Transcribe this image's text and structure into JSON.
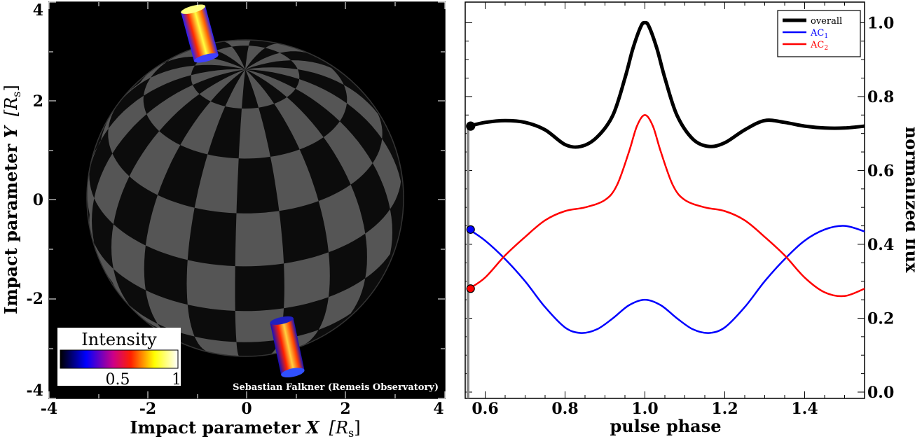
{
  "left_panel": {
    "xlabel": "Impact parameter X  [R_s]",
    "xlabel_main": "Impact parameter ",
    "xlabel_var": "X",
    "xlabel_unit": "[R",
    "xlabel_sub": "s",
    "xlabel_close": "]",
    "ylabel_main": "Impact parameter ",
    "ylabel_var": "Y",
    "ylabel_unit": "[R",
    "ylabel_sub": "s",
    "ylabel_close": "]",
    "x_ticks": [
      "-4",
      "-2",
      "0",
      "2",
      "4"
    ],
    "y_ticks": [
      "4",
      "2",
      "0",
      "-2",
      "-4"
    ],
    "xlim": [
      -4,
      4
    ],
    "ylim": [
      -4,
      4
    ],
    "colorbar": {
      "title": "Intensity",
      "tick_labels": [
        "0.5",
        "1"
      ],
      "colors": [
        "#000000",
        "#0000ff",
        "#ff0000",
        "#ffff00",
        "#ffffff"
      ]
    },
    "credit": "Sebastian Falkner (Remeis Observatory)",
    "background_color": "#000000",
    "sphere_light": "#555555",
    "sphere_dark": "#0c0c0c"
  },
  "chart_data": {
    "type": "line",
    "xlabel": "pulse phase",
    "ylabel": "normalized flux",
    "xlim": [
      0.55,
      1.55
    ],
    "ylim": [
      0,
      1.05
    ],
    "x_ticks": [
      "0.6",
      "0.8",
      "1.0",
      "1.2",
      "1.4"
    ],
    "y_ticks": [
      "0.0",
      "0.2",
      "0.4",
      "0.6",
      "0.8",
      "1.0"
    ],
    "legend_position": "top-right",
    "series": [
      {
        "name": "overall",
        "color": "#000000",
        "x": [
          0.56,
          0.6,
          0.65,
          0.7,
          0.75,
          0.8,
          0.84,
          0.88,
          0.92,
          0.95,
          0.97,
          0.99,
          1.0,
          1.01,
          1.03,
          1.05,
          1.08,
          1.12,
          1.16,
          1.2,
          1.25,
          1.3,
          1.35,
          1.4,
          1.45,
          1.5,
          1.55
        ],
        "values": [
          0.72,
          0.73,
          0.735,
          0.73,
          0.71,
          0.67,
          0.665,
          0.69,
          0.75,
          0.85,
          0.93,
          0.99,
          1.0,
          0.99,
          0.93,
          0.85,
          0.75,
          0.685,
          0.665,
          0.675,
          0.71,
          0.735,
          0.73,
          0.72,
          0.715,
          0.715,
          0.72
        ]
      },
      {
        "name": "AC1",
        "color": "#0000ff",
        "x": [
          0.56,
          0.6,
          0.65,
          0.7,
          0.75,
          0.8,
          0.84,
          0.88,
          0.92,
          0.96,
          1.0,
          1.04,
          1.08,
          1.12,
          1.16,
          1.2,
          1.25,
          1.3,
          1.35,
          1.4,
          1.45,
          1.5,
          1.55
        ],
        "values": [
          0.44,
          0.41,
          0.36,
          0.3,
          0.23,
          0.175,
          0.16,
          0.17,
          0.2,
          0.235,
          0.25,
          0.235,
          0.2,
          0.17,
          0.16,
          0.175,
          0.23,
          0.3,
          0.36,
          0.41,
          0.44,
          0.45,
          0.435
        ]
      },
      {
        "name": "AC2",
        "color": "#ff0000",
        "x": [
          0.56,
          0.6,
          0.65,
          0.7,
          0.75,
          0.8,
          0.85,
          0.9,
          0.93,
          0.96,
          0.98,
          1.0,
          1.02,
          1.04,
          1.07,
          1.1,
          1.15,
          1.2,
          1.25,
          1.3,
          1.35,
          1.4,
          1.45,
          1.5,
          1.55
        ],
        "values": [
          0.28,
          0.31,
          0.37,
          0.42,
          0.465,
          0.49,
          0.5,
          0.52,
          0.56,
          0.65,
          0.72,
          0.75,
          0.72,
          0.65,
          0.56,
          0.52,
          0.5,
          0.49,
          0.465,
          0.42,
          0.37,
          0.31,
          0.27,
          0.26,
          0.28
        ]
      }
    ],
    "markers_at_x": 0.56
  },
  "legend_labels": {
    "overall": "overall",
    "ac1_main": "AC",
    "ac1_sub": "1",
    "ac2_main": "AC",
    "ac2_sub": "2"
  }
}
